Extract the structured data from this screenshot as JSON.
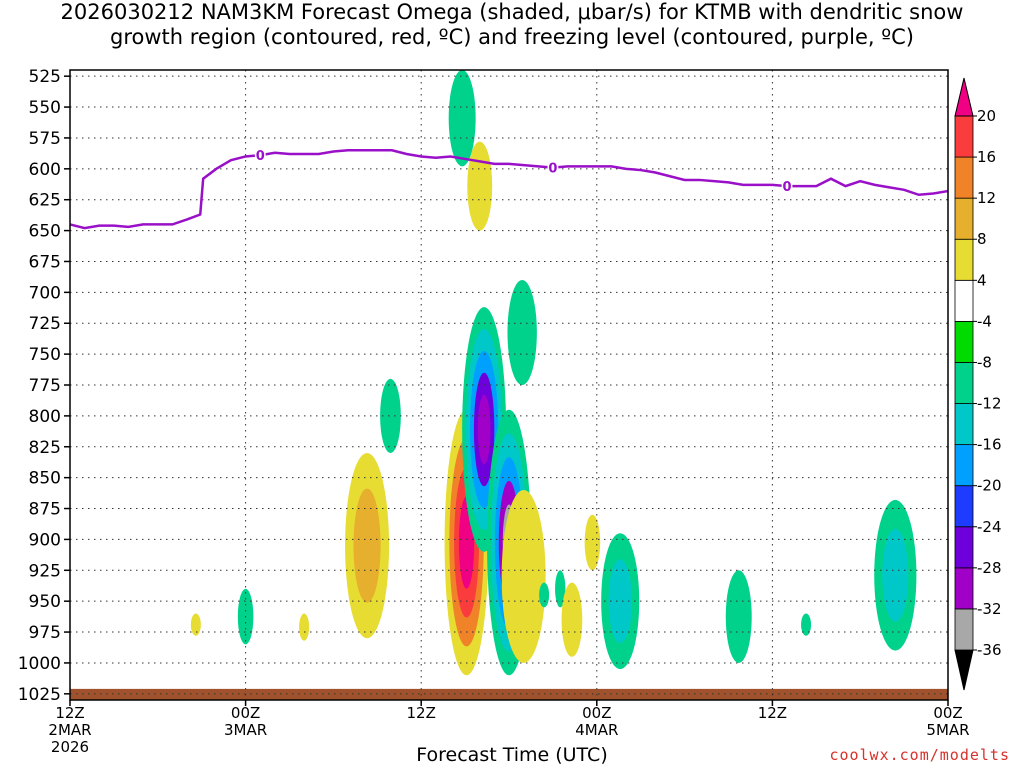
{
  "title": {
    "line1": "2026030212 NAM3KM Forecast Omega (shaded, μbar/s) for KTMB with dendritic snow",
    "line2": "growth region (contoured, red, ºC) and freezing level (contoured, purple, ºC)"
  },
  "xlabel": "Forecast Time (UTC)",
  "credit": "coolwx.com/modelts",
  "colors": {
    "freezing_level": "#9a10c8",
    "ground": "#a0522d",
    "grid": "#333333"
  },
  "colorbar": {
    "colors": [
      "#000000",
      "#a8a8a8",
      "#a000c8",
      "#6e00dc",
      "#1e3cff",
      "#00a0ff",
      "#00c8c8",
      "#00d28c",
      "#00dc00",
      "#ffffff",
      "#e6dc32",
      "#e6af2d",
      "#f08228",
      "#fa3c3c",
      "#f00082"
    ],
    "labels": [
      "-36",
      "-32",
      "-28",
      "-24",
      "-20",
      "-16",
      "-12",
      "-8",
      "-4",
      "4",
      "8",
      "12",
      "16",
      "20"
    ]
  },
  "chart_data": {
    "type": "heatmap",
    "title": "2026030212 NAM3KM Forecast Omega (shaded, μbar/s) for KTMB with dendritic snow growth region (contoured, red, ºC) and freezing level (contoured, purple, ºC)",
    "xlabel": "Forecast Time (UTC)",
    "ylabel": "",
    "x_range_hours": [
      0,
      60
    ],
    "y_range_hpa": [
      1030,
      520
    ],
    "grid": true,
    "y_ticks": [
      525,
      550,
      575,
      600,
      625,
      650,
      675,
      700,
      725,
      750,
      775,
      800,
      825,
      850,
      875,
      900,
      925,
      950,
      975,
      1000,
      1025
    ],
    "x_ticks": [
      {
        "hour": 0,
        "label": "12Z",
        "sub": "2MAR",
        "sub2": "2026"
      },
      {
        "hour": 12,
        "label": "00Z",
        "sub": "3MAR"
      },
      {
        "hour": 24,
        "label": "12Z",
        "sub": ""
      },
      {
        "hour": 36,
        "label": "00Z",
        "sub": "4MAR"
      },
      {
        "hour": 48,
        "label": "12Z",
        "sub": ""
      },
      {
        "hour": 60,
        "label": "00Z",
        "sub": "5MAR"
      }
    ],
    "freezing_level": {
      "name": "0",
      "points": [
        [
          0,
          645
        ],
        [
          1,
          648
        ],
        [
          2,
          646
        ],
        [
          3,
          646
        ],
        [
          4,
          647
        ],
        [
          5,
          645
        ],
        [
          6,
          645
        ],
        [
          7,
          645
        ],
        [
          8,
          641
        ],
        [
          8.9,
          637
        ],
        [
          9.1,
          608
        ],
        [
          10,
          600
        ],
        [
          11,
          593
        ],
        [
          12,
          590
        ],
        [
          13,
          589
        ],
        [
          14,
          587
        ],
        [
          15,
          588
        ],
        [
          16,
          588
        ],
        [
          17,
          588
        ],
        [
          18,
          586
        ],
        [
          19,
          585
        ],
        [
          20,
          585
        ],
        [
          21,
          585
        ],
        [
          22,
          585
        ],
        [
          23,
          588
        ],
        [
          24,
          590
        ],
        [
          25,
          591
        ],
        [
          26,
          590
        ],
        [
          27,
          592
        ],
        [
          28,
          594
        ],
        [
          29,
          596
        ],
        [
          30,
          596
        ],
        [
          31,
          597
        ],
        [
          32,
          598
        ],
        [
          33,
          599
        ],
        [
          34,
          598
        ],
        [
          35,
          598
        ],
        [
          36,
          598
        ],
        [
          37,
          598
        ],
        [
          38,
          600
        ],
        [
          39,
          601
        ],
        [
          40,
          603
        ],
        [
          41,
          606
        ],
        [
          42,
          609
        ],
        [
          43,
          609
        ],
        [
          44,
          610
        ],
        [
          45,
          611
        ],
        [
          46,
          613
        ],
        [
          47,
          613
        ],
        [
          48,
          613
        ],
        [
          49,
          614
        ],
        [
          50,
          614
        ],
        [
          51,
          614
        ],
        [
          52,
          608
        ],
        [
          53,
          614
        ],
        [
          54,
          610
        ],
        [
          55,
          613
        ],
        [
          56,
          615
        ],
        [
          57,
          617
        ],
        [
          58,
          621
        ],
        [
          59,
          620
        ],
        [
          60,
          618
        ]
      ],
      "labels_at_hours": [
        13,
        33,
        49
      ]
    },
    "ground_level_hpa": 1021,
    "omega_areas": [
      {
        "hour": 12,
        "top": 940,
        "bottom": 985,
        "values": [
          -8
        ]
      },
      {
        "hour": 8.6,
        "top": 960,
        "bottom": 978,
        "values": [
          4
        ]
      },
      {
        "hour": 16,
        "top": 960,
        "bottom": 982,
        "values": [
          4
        ]
      },
      {
        "hour": 20.3,
        "top": 830,
        "bottom": 980,
        "values": [
          4,
          8
        ]
      },
      {
        "hour": 21.9,
        "top": 770,
        "bottom": 830,
        "values": [
          -8
        ]
      },
      {
        "hour": 26.8,
        "top": 520,
        "bottom": 598,
        "values": [
          -8
        ]
      },
      {
        "hour": 28.0,
        "top": 578,
        "bottom": 650,
        "values": [
          4
        ]
      },
      {
        "hour": 27.1,
        "top": 795,
        "bottom": 1010,
        "values": [
          4,
          12,
          16,
          20
        ]
      },
      {
        "hour": 28.3,
        "top": 712,
        "bottom": 910,
        "values": [
          -8,
          -12,
          -16,
          -24,
          -28
        ]
      },
      {
        "hour": 30.0,
        "top": 795,
        "bottom": 1010,
        "values": [
          -8,
          -12,
          -16,
          -28,
          -32
        ]
      },
      {
        "hour": 30.9,
        "top": 690,
        "bottom": 775,
        "values": [
          -8
        ]
      },
      {
        "hour": 31.0,
        "top": 860,
        "bottom": 1000,
        "values": [
          4
        ]
      },
      {
        "hour": 32.4,
        "top": 935,
        "bottom": 955,
        "values": [
          -8
        ]
      },
      {
        "hour": 33.5,
        "top": 925,
        "bottom": 955,
        "values": [
          -8
        ]
      },
      {
        "hour": 34.3,
        "top": 935,
        "bottom": 995,
        "values": [
          4
        ]
      },
      {
        "hour": 35.7,
        "top": 880,
        "bottom": 925,
        "values": [
          4
        ]
      },
      {
        "hour": 37.6,
        "top": 895,
        "bottom": 1005,
        "values": [
          -8,
          -12
        ]
      },
      {
        "hour": 45.7,
        "top": 925,
        "bottom": 1000,
        "values": [
          -8
        ]
      },
      {
        "hour": 50.3,
        "top": 960,
        "bottom": 978,
        "values": [
          -8
        ]
      },
      {
        "hour": 56.4,
        "top": 868,
        "bottom": 990,
        "values": [
          -8,
          -12
        ]
      }
    ]
  }
}
